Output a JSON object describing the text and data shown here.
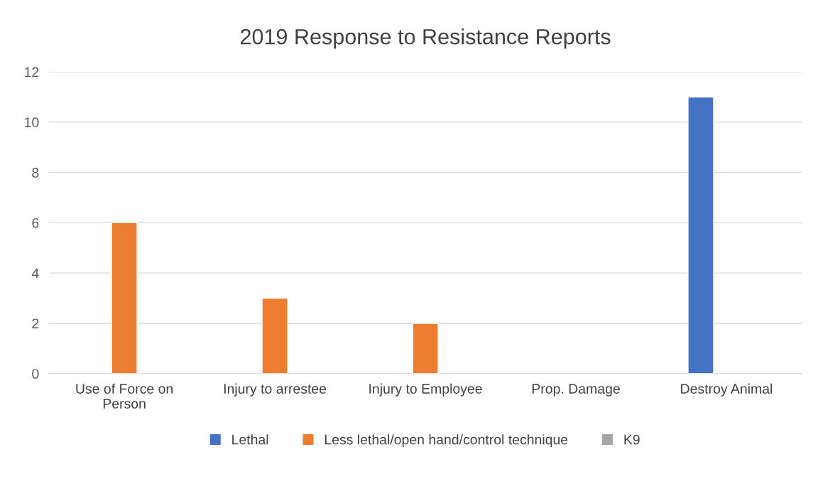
{
  "chart_data": {
    "type": "bar",
    "title": "2019 Response to Resistance Reports",
    "categories": [
      "Use of Force on\nPerson",
      "Injury to arrestee",
      "Injury to Employee",
      "Prop. Damage",
      "Destroy Animal"
    ],
    "series": [
      {
        "name": "Lethal",
        "color": "#4472c4",
        "values": [
          0,
          0,
          0,
          0,
          11
        ]
      },
      {
        "name": "Less lethal/open hand/control technique",
        "color": "#ed7d31",
        "values": [
          6,
          3,
          2,
          0,
          0
        ]
      },
      {
        "name": "K9",
        "color": "#a5a5a5",
        "values": [
          0,
          0,
          0,
          0,
          0
        ]
      }
    ],
    "ylim": [
      0,
      12
    ],
    "yticks": [
      0,
      2,
      4,
      6,
      8,
      10,
      12
    ],
    "grid": "y",
    "legend": "bottom"
  }
}
